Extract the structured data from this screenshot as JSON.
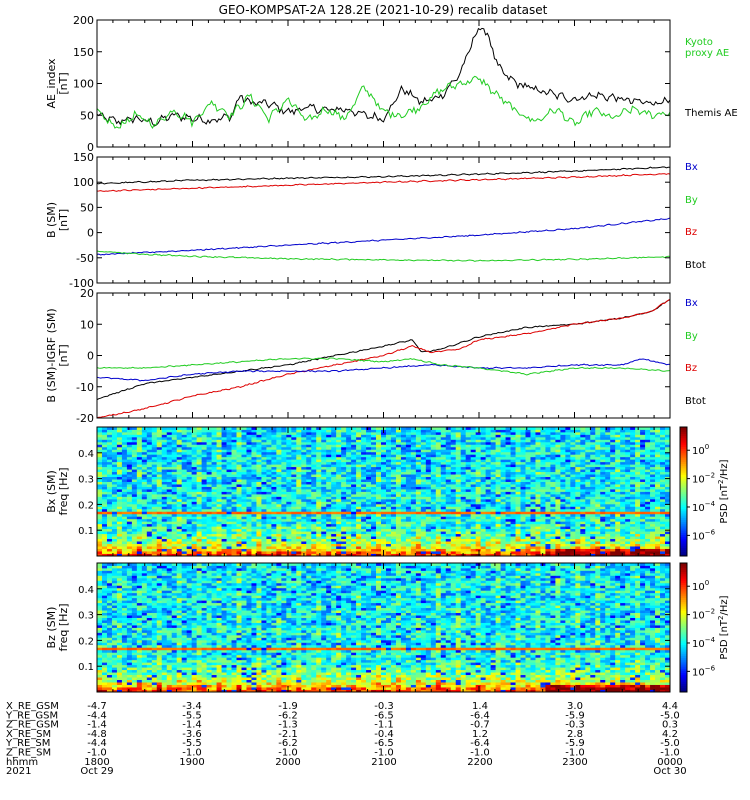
{
  "title": "GEO-KOMPSAT-2A 128.2E (2021-10-29) recalib dataset",
  "colors": {
    "black": "#000000",
    "blue": "#0000cc",
    "green": "#22cc22",
    "red": "#dd0000"
  },
  "chart_data": [
    {
      "type": "line",
      "ylabel": [
        "AE_index",
        "[nT]"
      ],
      "ylim": [
        0,
        200
      ],
      "yticks": [
        0,
        50,
        100,
        150,
        200
      ],
      "xlim": [
        18.0,
        24.0
      ],
      "legend": [
        {
          "name": "Kyoto proxy AE",
          "lines": [
            "Kyoto",
            "proxy AE"
          ],
          "color": "#22cc22"
        },
        {
          "name": "Themis AE",
          "lines": [
            "Themis AE"
          ],
          "color": "#000000"
        }
      ],
      "series": [
        {
          "name": "Themis AE",
          "color": "#000000",
          "x": [
            18.0,
            18.2,
            18.4,
            18.6,
            18.8,
            19.0,
            19.2,
            19.4,
            19.5,
            19.6,
            19.8,
            20.0,
            20.2,
            20.4,
            20.6,
            20.8,
            21.0,
            21.2,
            21.4,
            21.5,
            21.6,
            21.8,
            22.0,
            22.1,
            22.2,
            22.3,
            22.4,
            22.6,
            22.8,
            23.0,
            23.2,
            23.4,
            23.6,
            23.8,
            24.0
          ],
          "y": [
            50,
            40,
            45,
            38,
            50,
            45,
            42,
            48,
            80,
            70,
            68,
            55,
            62,
            58,
            60,
            50,
            45,
            92,
            70,
            75,
            80,
            115,
            190,
            175,
            125,
            110,
            100,
            90,
            82,
            75,
            82,
            78,
            72,
            70,
            72
          ]
        },
        {
          "name": "Kyoto proxy AE",
          "color": "#22cc22",
          "x": [
            18.0,
            18.2,
            18.4,
            18.6,
            18.8,
            19.0,
            19.2,
            19.4,
            19.6,
            19.8,
            20.0,
            20.2,
            20.4,
            20.6,
            20.8,
            21.0,
            21.2,
            21.4,
            21.6,
            21.8,
            22.0,
            22.2,
            22.4,
            22.6,
            22.8,
            23.0,
            23.2,
            23.4,
            23.6,
            23.8,
            24.0
          ],
          "y": [
            55,
            30,
            50,
            35,
            58,
            40,
            70,
            50,
            80,
            45,
            75,
            40,
            60,
            45,
            95,
            55,
            50,
            65,
            90,
            100,
            108,
            80,
            55,
            40,
            60,
            35,
            58,
            45,
            60,
            50,
            55
          ]
        }
      ]
    },
    {
      "type": "line",
      "ylabel": [
        "B (SM)",
        "[nT]"
      ],
      "ylim": [
        -100,
        150
      ],
      "yticks": [
        -100,
        -50,
        0,
        50,
        100,
        150
      ],
      "xlim": [
        18.0,
        24.0
      ],
      "legend": [
        {
          "name": "Bx",
          "lines": [
            "Bx"
          ],
          "color": "#0000cc"
        },
        {
          "name": "By",
          "lines": [
            "By"
          ],
          "color": "#22cc22"
        },
        {
          "name": "Bz",
          "lines": [
            "Bz"
          ],
          "color": "#dd0000"
        },
        {
          "name": "Btot",
          "lines": [
            "Btot"
          ],
          "color": "#000000"
        }
      ],
      "series": [
        {
          "name": "Btot",
          "color": "#000000",
          "x": [
            18.0,
            19.0,
            20.0,
            21.0,
            22.0,
            23.0,
            24.0
          ],
          "y": [
            97,
            104,
            108,
            111,
            116,
            122,
            130
          ]
        },
        {
          "name": "Bz",
          "color": "#dd0000",
          "x": [
            18.0,
            19.0,
            20.0,
            21.0,
            22.0,
            23.0,
            24.0
          ],
          "y": [
            82,
            88,
            94,
            100,
            105,
            110,
            117
          ]
        },
        {
          "name": "Bx",
          "color": "#0000cc",
          "x": [
            18.0,
            19.0,
            20.0,
            21.0,
            22.0,
            23.0,
            24.0
          ],
          "y": [
            -44,
            -35,
            -25,
            -15,
            -5,
            8,
            28
          ]
        },
        {
          "name": "By",
          "color": "#22cc22",
          "x": [
            18.0,
            18.5,
            19.0,
            20.0,
            21.0,
            22.0,
            23.0,
            24.0
          ],
          "y": [
            -37,
            -43,
            -47,
            -52,
            -54,
            -56,
            -53,
            -48
          ]
        }
      ]
    },
    {
      "type": "line",
      "ylabel": [
        "B (SM)-IGRF (SM)",
        "[nT]"
      ],
      "ylim": [
        -20,
        20
      ],
      "yticks": [
        -20,
        -10,
        0,
        10,
        20
      ],
      "xlim": [
        18.0,
        24.0
      ],
      "legend": [
        {
          "name": "Bx",
          "lines": [
            "Bx"
          ],
          "color": "#0000cc"
        },
        {
          "name": "By",
          "lines": [
            "By"
          ],
          "color": "#22cc22"
        },
        {
          "name": "Bz",
          "lines": [
            "Bz"
          ],
          "color": "#dd0000"
        },
        {
          "name": "Btot",
          "lines": [
            "Btot"
          ],
          "color": "#000000"
        }
      ],
      "series": [
        {
          "name": "Btot",
          "color": "#000000",
          "x": [
            18.0,
            18.5,
            19.0,
            19.5,
            20.0,
            20.5,
            21.0,
            21.3,
            21.4,
            21.6,
            21.8,
            22.0,
            22.5,
            23.0,
            23.5,
            23.8,
            24.0
          ],
          "y": [
            -14,
            -9,
            -7,
            -5,
            -3,
            0,
            3,
            5,
            1,
            2,
            4,
            6,
            9,
            10,
            12,
            14,
            18
          ]
        },
        {
          "name": "Bz",
          "color": "#dd0000",
          "x": [
            18.0,
            18.5,
            19.0,
            19.5,
            20.0,
            20.5,
            21.0,
            21.3,
            21.5,
            21.8,
            22.0,
            22.5,
            23.0,
            23.5,
            23.8,
            24.0
          ],
          "y": [
            -20,
            -17,
            -13,
            -10,
            -6,
            -3,
            0,
            3,
            1,
            2,
            5,
            7,
            10,
            12,
            14,
            18
          ]
        },
        {
          "name": "Bx",
          "color": "#0000cc",
          "x": [
            18.0,
            18.5,
            19.0,
            19.5,
            20.0,
            20.5,
            21.0,
            21.5,
            22.0,
            22.5,
            23.0,
            23.5,
            23.7,
            24.0
          ],
          "y": [
            -7,
            -8,
            -6,
            -5,
            -5,
            -5,
            -4,
            -3,
            -4,
            -4,
            -3,
            -3,
            -1,
            -3
          ]
        },
        {
          "name": "By",
          "color": "#22cc22",
          "x": [
            18.0,
            18.5,
            19.0,
            19.5,
            20.0,
            20.5,
            21.0,
            21.3,
            21.6,
            22.0,
            22.5,
            23.0,
            23.5,
            24.0
          ],
          "y": [
            -4,
            -4,
            -3,
            -2,
            -1,
            -1,
            -2,
            -1,
            -3,
            -4,
            -6,
            -4,
            -4,
            -5
          ]
        }
      ]
    },
    {
      "type": "heatmap",
      "ylabel": [
        "Bx (SM)",
        "freq [Hz]"
      ],
      "ylim": [
        0,
        0.5
      ],
      "yticks": [
        "0.1",
        "0.2",
        "0.3",
        "0.4"
      ],
      "xlim": [
        18.0,
        24.0
      ],
      "band_freqs": [
        0.17
      ],
      "colorbar": {
        "label": "PSD [nT²/Hz]",
        "label_parts": [
          "PSD [nT",
          "2",
          "/Hz]"
        ],
        "ticks": [
          {
            "base": "10",
            "exp": "0"
          },
          {
            "base": "10",
            "exp": "−2"
          },
          {
            "base": "10",
            "exp": "−4"
          },
          {
            "base": "10",
            "exp": "−6"
          }
        ]
      }
    },
    {
      "type": "heatmap",
      "ylabel": [
        "Bz (SM)",
        "freq [Hz]"
      ],
      "ylim": [
        0,
        0.5
      ],
      "yticks": [
        "0.1",
        "0.2",
        "0.3",
        "0.4"
      ],
      "xlim": [
        18.0,
        24.0
      ],
      "band_freqs": [
        0.165
      ],
      "colorbar": {
        "label": "PSD [nT²/Hz]",
        "label_parts": [
          "PSD [nT",
          "2",
          "/Hz]"
        ],
        "ticks": [
          {
            "base": "10",
            "exp": "0"
          },
          {
            "base": "10",
            "exp": "−2"
          },
          {
            "base": "10",
            "exp": "−4"
          },
          {
            "base": "10",
            "exp": "−6"
          }
        ]
      }
    }
  ],
  "ephemeris": {
    "rows": [
      {
        "label": "X_RE_GSM",
        "values": [
          "-4.7",
          "-3.4",
          "-1.9",
          "-0.3",
          "1.4",
          "3.0",
          "4.4"
        ]
      },
      {
        "label": "Y_RE_GSM",
        "values": [
          "-4.4",
          "-5.5",
          "-6.2",
          "-6.5",
          "-6.4",
          "-5.9",
          "-5.0"
        ]
      },
      {
        "label": "Z_RE_GSM",
        "values": [
          "-1.4",
          "-1.4",
          "-1.3",
          "-1.1",
          "-0.7",
          "-0.3",
          "0.3"
        ]
      },
      {
        "label": "X_RE_SM",
        "values": [
          "-4.8",
          "-3.6",
          "-2.1",
          "-0.4",
          "1.2",
          "2.8",
          "4.2"
        ]
      },
      {
        "label": "Y_RE_SM",
        "values": [
          "-4.4",
          "-5.5",
          "-6.2",
          "-6.5",
          "-6.4",
          "-5.9",
          "-5.0"
        ]
      },
      {
        "label": "Z_RE_SM",
        "values": [
          "-1.0",
          "-1.0",
          "-1.0",
          "-1.0",
          "-1.0",
          "-1.0",
          "-1.0"
        ]
      },
      {
        "label": "hhmm",
        "values": [
          "1800",
          "1900",
          "2000",
          "2100",
          "2200",
          "2300",
          "0000"
        ]
      }
    ],
    "date_row": {
      "label": "2021",
      "values": [
        "Oct 29",
        "",
        "",
        "",
        "",
        "",
        "Oct 30"
      ]
    }
  }
}
